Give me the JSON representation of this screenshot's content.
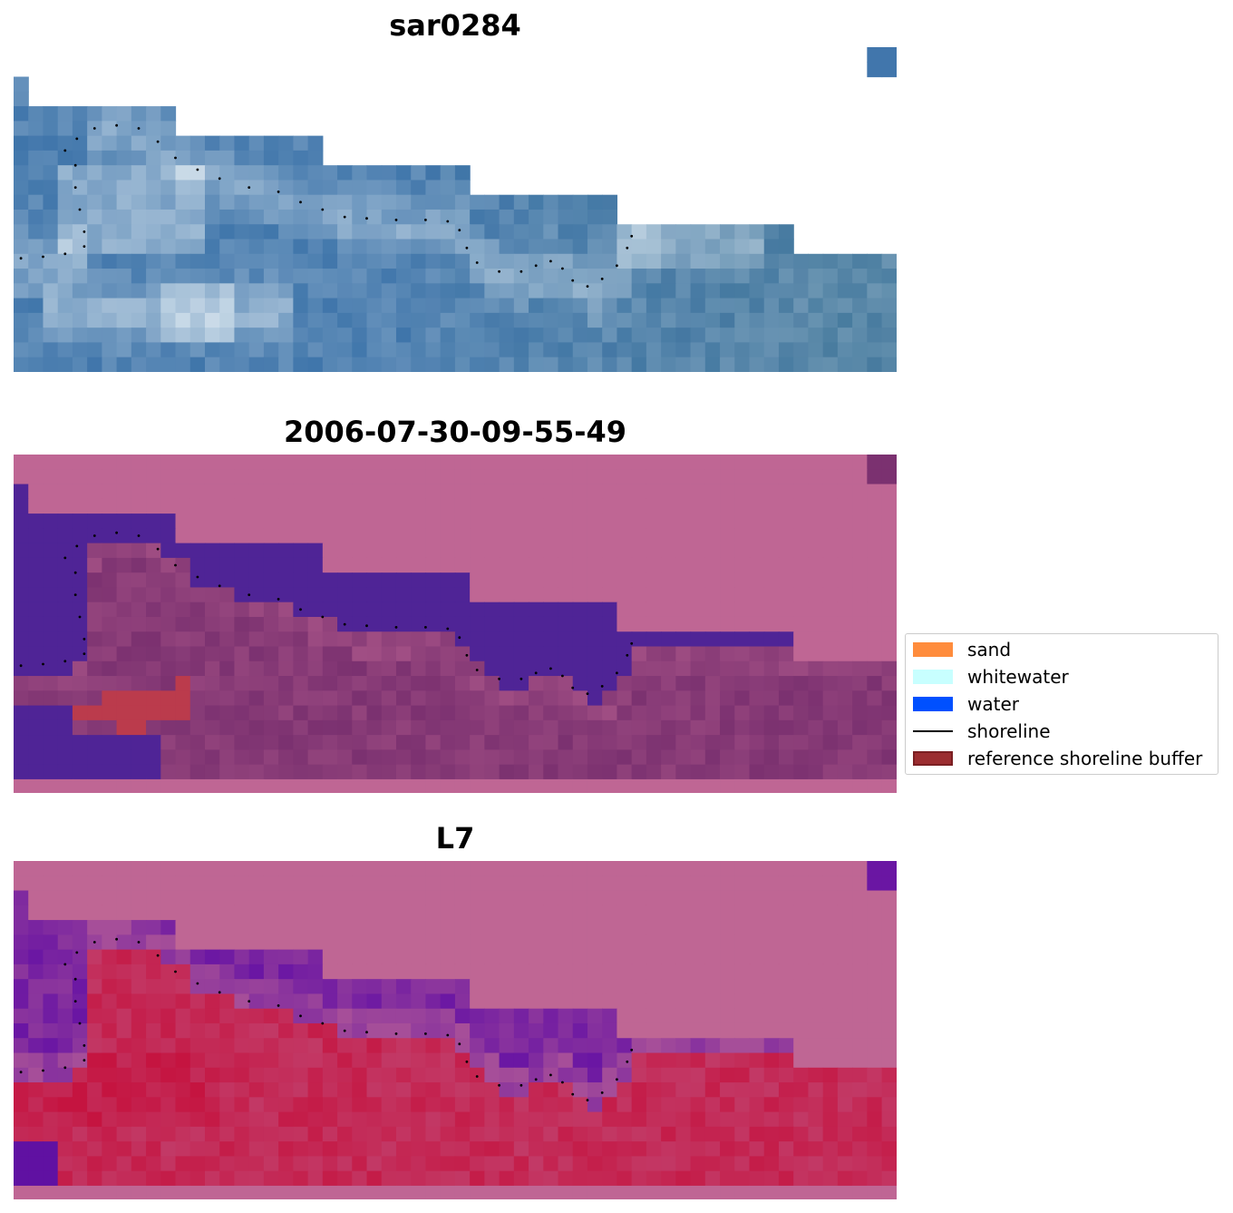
{
  "panels": [
    {
      "title": "sar0284",
      "kind": "rgb"
    },
    {
      "title": "2006-07-30-09-55-49",
      "kind": "classified"
    },
    {
      "title": "L7",
      "kind": "mndwi"
    }
  ],
  "legend": {
    "items": [
      {
        "label": "sand",
        "color": "#ff8c3c",
        "type": "patch"
      },
      {
        "label": "whitewater",
        "color": "#c8ffff",
        "type": "patch"
      },
      {
        "label": "water",
        "color": "#0050ff",
        "type": "patch"
      },
      {
        "label": "shoreline",
        "color": "#000000",
        "type": "line"
      },
      {
        "label": "reference shoreline buffer",
        "color": "#9b2d30",
        "edge": "#7a1f22",
        "type": "patch"
      }
    ]
  },
  "colors": {
    "nodata_pink": "#bf6694",
    "water_overlay": "#4f2496",
    "land_purple": "#7b3170",
    "buffer_red": "#bb3b4c",
    "rgb_blue": "#3f75aa",
    "rgb_bright": "#dce8f0",
    "mndwi_red": "#c51440",
    "mndwi_violet": "#6a16a3"
  }
}
